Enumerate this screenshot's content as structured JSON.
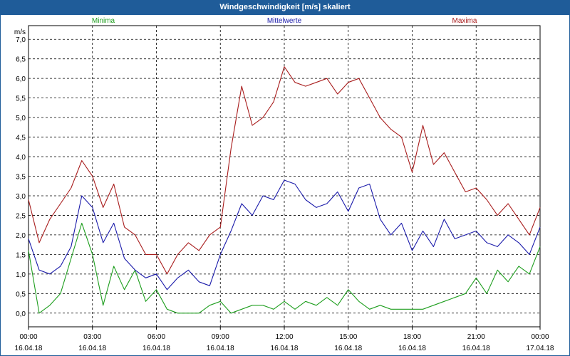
{
  "window": {
    "title": "Windgeschwindigkeit [m/s] skaliert"
  },
  "chart_data": {
    "type": "line",
    "title": "Windgeschwindigkeit [m/s] skaliert",
    "ylabel": "m/s",
    "ylim": [
      -0.35,
      7.35
    ],
    "xlim": [
      0,
      24
    ],
    "grid": true,
    "yticks": [
      "0,0",
      "0,5",
      "1,0",
      "1,5",
      "2,0",
      "2,5",
      "3,0",
      "3,5",
      "4,0",
      "4,5",
      "5,0",
      "5,5",
      "6,0",
      "6,5",
      "7,0"
    ],
    "xticks": [
      {
        "time": "00:00",
        "date": "16.04.18"
      },
      {
        "time": "03:00",
        "date": "16.04.18"
      },
      {
        "time": "06:00",
        "date": "16.04.18"
      },
      {
        "time": "09:00",
        "date": "16.04.18"
      },
      {
        "time": "12:00",
        "date": "16.04.18"
      },
      {
        "time": "15:00",
        "date": "16.04.18"
      },
      {
        "time": "18:00",
        "date": "16.04.18"
      },
      {
        "time": "21:00",
        "date": "16.04.18"
      },
      {
        "time": "00:00",
        "date": "17.04.18"
      }
    ],
    "x_hours": [
      0,
      0.5,
      1,
      1.5,
      2,
      2.5,
      3,
      3.5,
      4,
      4.5,
      5,
      5.5,
      6,
      6.5,
      7,
      7.5,
      8,
      8.5,
      9,
      9.5,
      10,
      10.5,
      11,
      11.5,
      12,
      12.5,
      13,
      13.5,
      14,
      14.5,
      15,
      15.5,
      16,
      16.5,
      17,
      17.5,
      18,
      18.5,
      19,
      19.5,
      20,
      20.5,
      21,
      21.5,
      22,
      22.5,
      23,
      23.5,
      24
    ],
    "series": [
      {
        "name": "Minima",
        "color": "#1e9e1e",
        "values": [
          1.6,
          0.0,
          0.2,
          0.5,
          1.4,
          2.3,
          1.5,
          0.2,
          1.2,
          0.6,
          1.1,
          0.3,
          0.6,
          0.1,
          0.0,
          0.0,
          0.0,
          0.2,
          0.3,
          0.0,
          0.1,
          0.2,
          0.2,
          0.1,
          0.3,
          0.1,
          0.3,
          0.2,
          0.4,
          0.2,
          0.6,
          0.3,
          0.1,
          0.2,
          0.1,
          0.1,
          0.1,
          0.1,
          0.2,
          0.3,
          0.4,
          0.5,
          0.9,
          0.5,
          1.1,
          0.8,
          1.2,
          1.0,
          1.7
        ]
      },
      {
        "name": "Mittelwerte",
        "color": "#1a1aaa",
        "values": [
          1.9,
          1.1,
          1.0,
          1.2,
          1.7,
          3.0,
          2.7,
          1.8,
          2.3,
          1.4,
          1.1,
          0.9,
          1.0,
          0.6,
          0.9,
          1.1,
          0.8,
          0.7,
          1.5,
          2.1,
          2.8,
          2.5,
          3.0,
          2.9,
          3.4,
          3.3,
          2.9,
          2.7,
          2.8,
          3.1,
          2.6,
          3.2,
          3.3,
          2.4,
          2.0,
          2.3,
          1.6,
          2.1,
          1.7,
          2.4,
          1.9,
          2.0,
          2.1,
          1.8,
          1.7,
          2.0,
          1.8,
          1.5,
          2.2
        ]
      },
      {
        "name": "Maxima",
        "color": "#a81c1c",
        "values": [
          2.9,
          1.8,
          2.4,
          2.8,
          3.2,
          3.9,
          3.5,
          2.7,
          3.3,
          2.2,
          2.0,
          1.5,
          1.5,
          1.0,
          1.5,
          1.8,
          1.6,
          2.0,
          2.2,
          4.2,
          5.8,
          4.8,
          5.0,
          5.4,
          6.3,
          5.9,
          5.8,
          5.9,
          6.0,
          5.6,
          5.9,
          6.0,
          5.5,
          5.0,
          4.7,
          4.5,
          3.6,
          4.8,
          3.8,
          4.1,
          3.6,
          3.1,
          3.2,
          2.9,
          2.5,
          2.8,
          2.4,
          2.0,
          2.7
        ]
      }
    ]
  }
}
